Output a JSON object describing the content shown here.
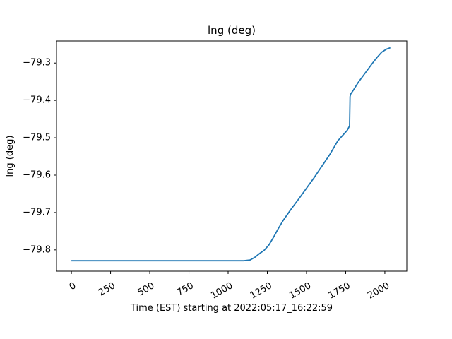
{
  "chart_data": {
    "type": "line",
    "title": "lng (deg)",
    "xlabel": "Time (EST) starting at 2022:05:17_16:22:59",
    "ylabel": "lng (deg)",
    "xlim": [
      -95,
      2140
    ],
    "ylim": [
      -79.857,
      -79.241
    ],
    "xticks": [
      0,
      250,
      500,
      750,
      1000,
      1250,
      1500,
      1750,
      2000
    ],
    "xtick_labels": [
      "0",
      "250",
      "500",
      "750",
      "1000",
      "1250",
      "1500",
      "1750",
      "2000"
    ],
    "yticks": [
      -79.8,
      -79.7,
      -79.6,
      -79.5,
      -79.4,
      -79.3
    ],
    "ytick_labels": [
      "−79.8",
      "−79.7",
      "−79.6",
      "−79.5",
      "−79.4",
      "−79.3"
    ],
    "grid": false,
    "color": "#1f77b4",
    "series": [
      {
        "x": [
          0,
          250,
          500,
          750,
          1000,
          1100,
          1140,
          1170,
          1200,
          1230,
          1260,
          1290,
          1320,
          1350,
          1370,
          1400,
          1450,
          1500,
          1550,
          1600,
          1650,
          1700,
          1730,
          1760,
          1775,
          1778,
          1782,
          1800,
          1830,
          1860,
          1890,
          1920,
          1950,
          1980,
          2010,
          2035
        ],
        "y": [
          -79.829,
          -79.829,
          -79.829,
          -79.829,
          -79.829,
          -79.829,
          -79.827,
          -79.82,
          -79.81,
          -79.801,
          -79.787,
          -79.766,
          -79.743,
          -79.722,
          -79.71,
          -79.692,
          -79.664,
          -79.635,
          -79.606,
          -79.575,
          -79.544,
          -79.508,
          -79.494,
          -79.48,
          -79.468,
          -79.39,
          -79.383,
          -79.372,
          -79.352,
          -79.335,
          -79.318,
          -79.301,
          -79.285,
          -79.271,
          -79.263,
          -79.259
        ]
      }
    ]
  }
}
